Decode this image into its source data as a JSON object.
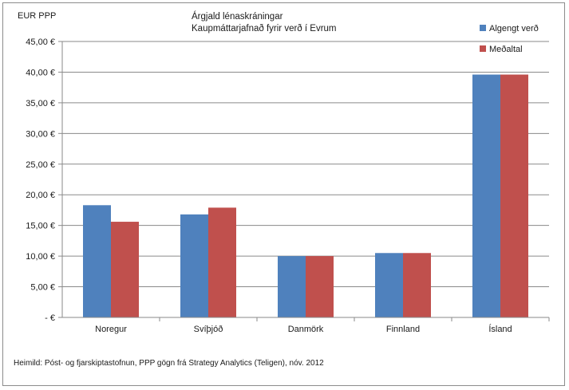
{
  "chart_data": {
    "type": "bar",
    "title": "Árgjald lénaskráningar",
    "subtitle": "Kaupmáttarjafnað fyrir verð í Evrum",
    "ylabel": "EUR PPP",
    "xlabel": "",
    "categories": [
      "Noregur",
      "Svíþjóð",
      "Danmörk",
      "Finnland",
      "Ísland"
    ],
    "series": [
      {
        "name": "Algengt verð",
        "color": "#4f81bd",
        "values": [
          18.3,
          16.8,
          10.0,
          10.5,
          39.6
        ]
      },
      {
        "name": "Meðaltal",
        "color": "#c0504d",
        "values": [
          15.6,
          17.9,
          10.0,
          10.5,
          39.6
        ]
      }
    ],
    "ylim": [
      0,
      45
    ],
    "yticks": [
      0,
      5,
      10,
      15,
      20,
      25,
      30,
      35,
      40,
      45
    ],
    "ytick_labels": [
      "-  €",
      "5,00 €",
      "10,00 €",
      "15,00 €",
      "20,00 €",
      "25,00 €",
      "30,00 €",
      "35,00 €",
      "40,00 €",
      "45,00 €"
    ],
    "grid": true,
    "legend_position": "top-right",
    "source": "Heimild: Póst- og fjarskiptastofnun, PPP gögn frá Strategy Analytics (Teligen), nóv. 2012"
  }
}
